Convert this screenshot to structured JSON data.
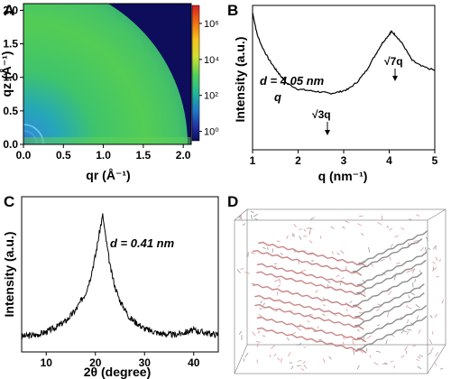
{
  "figure": {
    "panels": [
      {
        "letter": "A",
        "xlabel": "qr (Å⁻¹)",
        "ylabel": "qz (Å⁻¹)",
        "xticks": [
          "0.0",
          "0.5",
          "1.0",
          "1.5",
          "2.0"
        ],
        "yticks": [
          "0.0",
          "0.5",
          "1.0",
          "1.5",
          "2.0"
        ],
        "colorbar_ticks": [
          "10⁶",
          "10⁴",
          "10²",
          "10⁰"
        ],
        "colorbar_colors": [
          "#d62020",
          "#f06a14",
          "#f7c21a",
          "#cfe030",
          "#4fd05a",
          "#1fb89a",
          "#1e78c8",
          "#1f2fa0",
          "#0c0c5a"
        ]
      },
      {
        "letter": "B",
        "xlabel": "q (nm⁻¹)",
        "ylabel": "Intensity (a.u.)",
        "xticks": [
          "1",
          "2",
          "3",
          "4",
          "5"
        ],
        "annotations": [
          "d = 4.05 nm",
          "q",
          "√3q",
          "√7q"
        ]
      },
      {
        "letter": "C",
        "xlabel": "2θ (degree)",
        "ylabel": "Intensity (a.u.)",
        "xticks": [
          "10",
          "20",
          "30",
          "40"
        ],
        "annotations": [
          "d = 0.41 nm"
        ]
      },
      {
        "letter": "D"
      }
    ]
  },
  "chart_data": [
    {
      "type": "heatmap",
      "title": "",
      "xlabel": "qr (Å⁻¹)",
      "ylabel": "qz (Å⁻¹)",
      "xlim": [
        0,
        2.1
      ],
      "ylim": [
        0,
        2.1
      ],
      "colorbar": {
        "scale": "log",
        "range": [
          0.3,
          10000000
        ]
      }
    },
    {
      "type": "line",
      "title": "",
      "xlabel": "q (nm⁻¹)",
      "ylabel": "Intensity (a.u.)",
      "xlim": [
        1,
        5
      ],
      "x": [
        1.0,
        1.1,
        1.2,
        1.35,
        1.5,
        1.6,
        1.75,
        2.0,
        2.25,
        2.5,
        2.7,
        2.9,
        3.1,
        3.3,
        3.5,
        3.7,
        3.85,
        4.0,
        4.05,
        4.15,
        4.3,
        4.5,
        4.7,
        5.0
      ],
      "y": [
        0.95,
        0.8,
        0.72,
        0.63,
        0.56,
        0.52,
        0.46,
        0.42,
        0.41,
        0.4,
        0.39,
        0.4,
        0.42,
        0.47,
        0.55,
        0.66,
        0.74,
        0.8,
        0.82,
        0.79,
        0.73,
        0.62,
        0.58,
        0.55
      ],
      "peaks": [
        {
          "label": "q",
          "x": 1.55
        },
        {
          "label": "√3q",
          "x": 2.68
        },
        {
          "label": "√7q",
          "x": 4.1
        }
      ]
    },
    {
      "type": "line",
      "title": "",
      "xlabel": "2θ (degree)",
      "ylabel": "Intensity (a.u.)",
      "xlim": [
        5,
        45
      ],
      "x": [
        5,
        8,
        10,
        12,
        14,
        16,
        18,
        19,
        20,
        21,
        21.5,
        22,
        23,
        24,
        25,
        27,
        30,
        33,
        36,
        40,
        43,
        45
      ],
      "y": [
        0.1,
        0.11,
        0.13,
        0.16,
        0.2,
        0.27,
        0.38,
        0.48,
        0.62,
        0.8,
        0.88,
        0.76,
        0.55,
        0.42,
        0.33,
        0.22,
        0.15,
        0.12,
        0.11,
        0.14,
        0.12,
        0.11
      ]
    }
  ]
}
